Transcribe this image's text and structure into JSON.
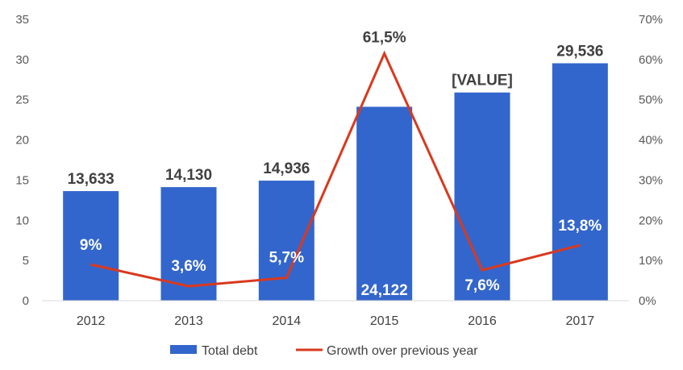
{
  "chart_data": {
    "type": "bar",
    "categories": [
      "2012",
      "2013",
      "2014",
      "2015",
      "2016",
      "2017"
    ],
    "series": [
      {
        "name": "Total debt",
        "type": "bar",
        "axis": "left",
        "values": [
          13.633,
          14.13,
          14.936,
          24.122,
          25.9,
          29.536
        ],
        "labels": [
          "13,633",
          "14,130",
          "14,936",
          "24,122",
          "[VALUE]",
          "29,536"
        ],
        "color": "#3366CC"
      },
      {
        "name": "Growth over previous year",
        "type": "line",
        "axis": "right",
        "values": [
          9,
          3.6,
          5.7,
          61.5,
          7.6,
          13.8
        ],
        "labels": [
          "9%",
          "3,6%",
          "5,7%",
          "61,5%",
          "7,6%",
          "13,8%"
        ],
        "color": "#D9391E"
      }
    ],
    "yleft": {
      "min": 0,
      "max": 35,
      "step": 5,
      "ticks": [
        "0",
        "5",
        "10",
        "15",
        "20",
        "25",
        "30",
        "35"
      ]
    },
    "yright": {
      "min": 0,
      "max": 70,
      "step": 10,
      "ticks": [
        "0%",
        "10%",
        "20%",
        "30%",
        "40%",
        "50%",
        "60%",
        "70%"
      ]
    },
    "grid": false,
    "legend": "bottom"
  }
}
